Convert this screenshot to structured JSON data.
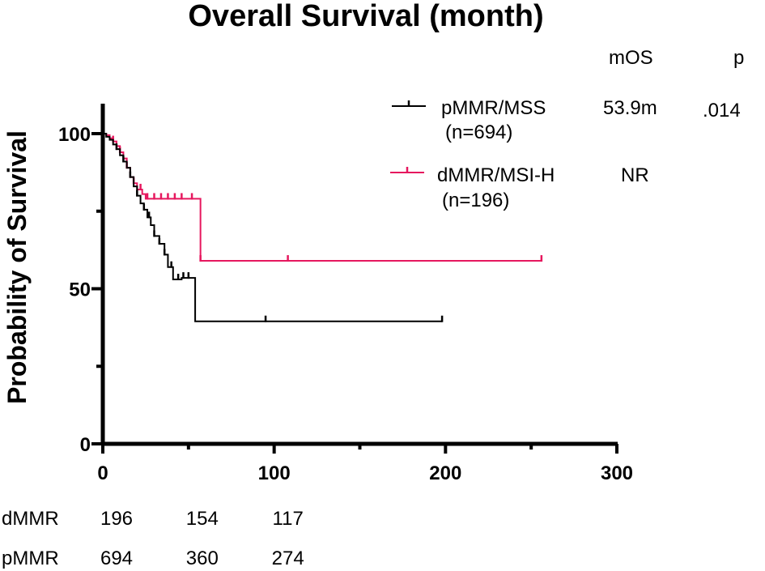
{
  "colors": {
    "pmmr": "#000000",
    "dmmr": "#e6175e",
    "axis": "#000000"
  },
  "chart_data": {
    "type": "line",
    "title": "Overall Survival (month)",
    "xlabel": "",
    "ylabel": "Probability of Survival",
    "xlim": [
      0,
      300
    ],
    "ylim": [
      0,
      100
    ],
    "x_ticks": [
      0,
      100,
      200,
      300
    ],
    "x_tick_labels": [
      "0",
      "100",
      "200",
      "300"
    ],
    "y_ticks": [
      0,
      50,
      100
    ],
    "y_tick_labels": [
      "0",
      "50",
      "100"
    ],
    "x_minor_ticks": [
      50,
      150,
      250
    ],
    "y_minor_ticks": [
      25,
      75
    ],
    "stat_headers": {
      "median": "mOS",
      "p": "p"
    },
    "series": [
      {
        "name": "pMMR/MSS",
        "n_label": "(n=694)",
        "median": "53.9m",
        "p": ".014",
        "color": "#000000",
        "x": [
          0,
          2,
          4,
          6,
          8,
          10,
          12,
          14,
          16,
          18,
          20,
          22,
          24,
          26,
          28,
          30,
          33,
          36,
          38,
          41,
          44,
          46,
          50,
          53.9,
          95,
          198
        ],
        "y": [
          100,
          99,
          98,
          96.5,
          95,
          93,
          91,
          89,
          86,
          83,
          80,
          77.5,
          75.5,
          73,
          70.5,
          67,
          64.5,
          61,
          57,
          53,
          53,
          53.5,
          53.5,
          39.5,
          39.5,
          39.5
        ],
        "censor_x": [
          8,
          12,
          16,
          20,
          24,
          27,
          30,
          33,
          36,
          40,
          44,
          47,
          50,
          95,
          198
        ]
      },
      {
        "name": "dMMR/MSI-H",
        "n_label": "(n=196)",
        "median": "NR",
        "p": "",
        "color": "#e6175e",
        "x": [
          0,
          2,
          4,
          6,
          8,
          10,
          12,
          14,
          16,
          18,
          20,
          23,
          25,
          30,
          40,
          57,
          108,
          256
        ],
        "y": [
          100,
          99.5,
          98.5,
          97.5,
          96,
          94,
          92,
          89,
          86,
          84,
          82,
          80.5,
          79,
          79,
          79,
          59,
          59,
          59
        ],
        "censor_x": [
          6,
          10,
          14,
          18,
          22,
          26,
          30,
          34,
          38,
          42,
          46,
          52,
          57,
          108,
          256
        ]
      }
    ],
    "risk_table": {
      "times": [
        0,
        50,
        100
      ],
      "rows": [
        {
          "label": "dMMR",
          "values": [
            "196",
            "154",
            "117"
          ]
        },
        {
          "label": "pMMR",
          "values": [
            "694",
            "360",
            "274"
          ]
        }
      ]
    }
  }
}
